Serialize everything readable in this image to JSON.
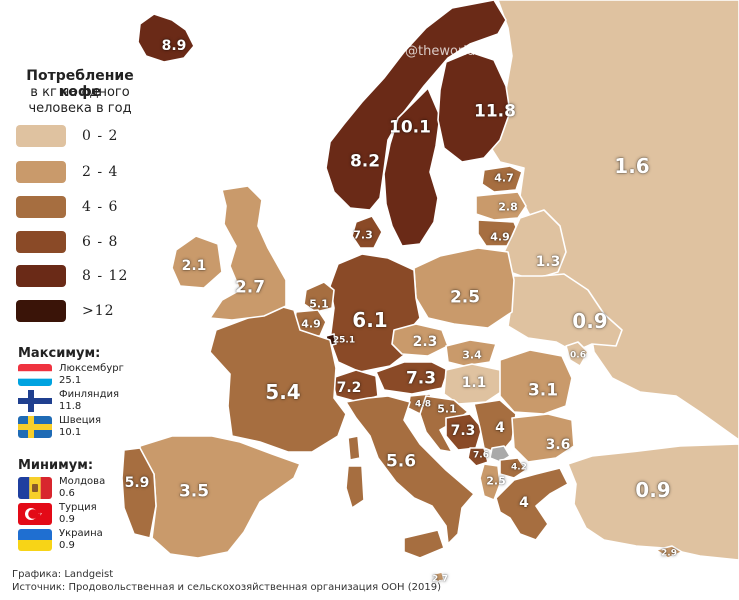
{
  "watermark": "@theworldmaps",
  "legend": {
    "title": "Потребление кофе",
    "subtitle_line1": "в кг на одного",
    "subtitle_line2": "человека в год",
    "bins": [
      {
        "label": "0 - 2",
        "color": "#dfc2a0"
      },
      {
        "label": "2 - 4",
        "color": "#c99a6b"
      },
      {
        "label": "4 - 6",
        "color": "#a66e40"
      },
      {
        "label": "6 - 8",
        "color": "#8a4a27"
      },
      {
        "label": "8 - 12",
        "color": "#6a2a17"
      },
      {
        "label": ">12",
        "color": "#3a1408"
      }
    ]
  },
  "maximum": {
    "heading": "Максимум:",
    "items": [
      {
        "country": "Люксембург",
        "value": "25.1",
        "flag": "luxembourg-flag-icon"
      },
      {
        "country": "Финляндия",
        "value": "11.8",
        "flag": "finland-flag-icon"
      },
      {
        "country": "Швеция",
        "value": "10.1",
        "flag": "sweden-flag-icon"
      }
    ]
  },
  "minimum": {
    "heading": "Минимум:",
    "items": [
      {
        "country": "Молдова",
        "value": "0.6",
        "flag": "moldova-flag-icon"
      },
      {
        "country": "Турция",
        "value": "0.9",
        "flag": "turkey-flag-icon"
      },
      {
        "country": "Украина",
        "value": "0.9",
        "flag": "ukraine-flag-icon"
      }
    ]
  },
  "credits": {
    "graphic": "Графика: Landgeist",
    "source": "Источник: Продовольственная и сельскохозяйственная организация ООН (2019)"
  },
  "countries": [
    {
      "id": "iceland",
      "value": "8.9",
      "color": "#6a2a17"
    },
    {
      "id": "norway",
      "value": "8.2",
      "color": "#6a2a17"
    },
    {
      "id": "sweden",
      "value": "10.1",
      "color": "#6a2a17"
    },
    {
      "id": "finland",
      "value": "11.8",
      "color": "#6a2a17"
    },
    {
      "id": "russia",
      "value": "1.6",
      "color": "#dfc2a0"
    },
    {
      "id": "estonia",
      "value": "4.7",
      "color": "#a66e40"
    },
    {
      "id": "latvia",
      "value": "2.8",
      "color": "#c99a6b"
    },
    {
      "id": "lithuania",
      "value": "4.9",
      "color": "#a66e40"
    },
    {
      "id": "denmark",
      "value": "7.3",
      "color": "#8a4a27"
    },
    {
      "id": "ireland",
      "value": "2.1",
      "color": "#c99a6b"
    },
    {
      "id": "uk",
      "value": "2.7",
      "color": "#c99a6b"
    },
    {
      "id": "netherlands",
      "value": "5.1",
      "color": "#a66e40"
    },
    {
      "id": "belgium",
      "value": "4.9",
      "color": "#a66e40"
    },
    {
      "id": "luxembourg",
      "value": "25.1",
      "color": "#3a1408"
    },
    {
      "id": "germany",
      "value": "6.1",
      "color": "#8a4a27"
    },
    {
      "id": "poland",
      "value": "2.5",
      "color": "#c99a6b"
    },
    {
      "id": "belarus",
      "value": "1.3",
      "color": "#dfc2a0"
    },
    {
      "id": "ukraine",
      "value": "0.9",
      "color": "#dfc2a0"
    },
    {
      "id": "moldova",
      "value": "0.6",
      "color": "#dfc2a0"
    },
    {
      "id": "czechia",
      "value": "2.3",
      "color": "#c99a6b"
    },
    {
      "id": "slovakia",
      "value": "3.4",
      "color": "#c99a6b"
    },
    {
      "id": "hungary",
      "value": "1.1",
      "color": "#dfc2a0"
    },
    {
      "id": "romania",
      "value": "3.1",
      "color": "#c99a6b"
    },
    {
      "id": "austria",
      "value": "7.3",
      "color": "#8a4a27"
    },
    {
      "id": "switzerland",
      "value": "7.2",
      "color": "#8a4a27"
    },
    {
      "id": "france",
      "value": "5.4",
      "color": "#a66e40"
    },
    {
      "id": "slovenia",
      "value": "4.8",
      "color": "#a66e40"
    },
    {
      "id": "croatia",
      "value": "5.1",
      "color": "#a66e40"
    },
    {
      "id": "bosnia",
      "value": "7.3",
      "color": "#8a4a27"
    },
    {
      "id": "serbia",
      "value": "4",
      "color": "#a66e40"
    },
    {
      "id": "montenegro",
      "value": "7.6",
      "color": "#8a4a27"
    },
    {
      "id": "kosovo",
      "value": "",
      "color": "#a9a9a9"
    },
    {
      "id": "north-macedonia",
      "value": "4.2",
      "color": "#a66e40"
    },
    {
      "id": "albania",
      "value": "2.5",
      "color": "#c99a6b"
    },
    {
      "id": "bulgaria",
      "value": "3.6",
      "color": "#c99a6b"
    },
    {
      "id": "greece",
      "value": "4",
      "color": "#a66e40"
    },
    {
      "id": "turkey",
      "value": "0.9",
      "color": "#dfc2a0"
    },
    {
      "id": "italy",
      "value": "5.6",
      "color": "#a66e40"
    },
    {
      "id": "spain",
      "value": "3.5",
      "color": "#c99a6b"
    },
    {
      "id": "portugal",
      "value": "5.9",
      "color": "#a66e40"
    },
    {
      "id": "cyprus",
      "value": "2.9",
      "color": "#c99a6b"
    },
    {
      "id": "malta",
      "value": "2.7",
      "color": "#c99a6b"
    }
  ]
}
